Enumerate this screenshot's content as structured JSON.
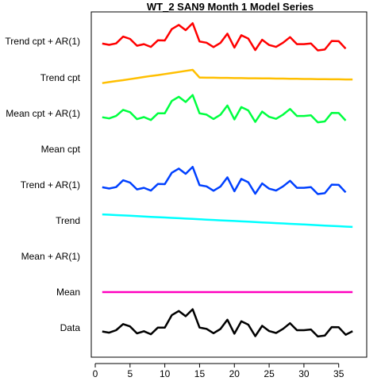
{
  "chart_data": {
    "type": "line",
    "title": "WT_2 SAN9 Month 1 Model Series",
    "xlabel": "",
    "ylabel": "",
    "xlim": [
      0,
      38
    ],
    "x_ticks": [
      0,
      5,
      10,
      15,
      20,
      25,
      30,
      35
    ],
    "grid": false,
    "legend": "none",
    "series": [
      {
        "name": "Trend cpt + AR(1)",
        "color": "#ff0000",
        "values": [
          0.15,
          0.08,
          0.16,
          0.55,
          0.42,
          0.03,
          0.12,
          -0.04,
          0.34,
          0.33,
          0.98,
          1.22,
          0.92,
          1.32,
          0.27,
          0.2,
          -0.05,
          0.19,
          0.72,
          -0.08,
          0.63,
          0.44,
          -0.22,
          0.37,
          0.07,
          -0.04,
          0.2,
          0.52,
          0.12,
          0.12,
          0.16,
          -0.24,
          -0.19,
          0.3,
          0.29,
          -0.14
        ]
      },
      {
        "name": "Trend cpt",
        "color": "#ffbf00",
        "values": [
          0.0,
          0.06,
          0.12,
          0.17,
          0.23,
          0.29,
          0.35,
          0.41,
          0.46,
          0.52,
          0.58,
          0.64,
          0.7,
          0.76,
          0.32,
          0.31,
          0.31,
          0.3,
          0.3,
          0.29,
          0.29,
          0.28,
          0.28,
          0.27,
          0.27,
          0.26,
          0.26,
          0.25,
          0.25,
          0.24,
          0.24,
          0.23,
          0.23,
          0.22,
          0.22,
          0.21,
          0.21
        ]
      },
      {
        "name": "Mean cpt + AR(1)",
        "color": "#00ff40",
        "values": [
          0.05,
          -0.02,
          0.12,
          0.47,
          0.34,
          -0.06,
          0.06,
          -0.11,
          0.27,
          0.27,
          0.98,
          1.22,
          0.92,
          1.32,
          0.27,
          0.2,
          -0.05,
          0.19,
          0.72,
          -0.08,
          0.63,
          0.44,
          -0.22,
          0.37,
          0.07,
          -0.04,
          0.2,
          0.52,
          0.12,
          0.12,
          0.16,
          -0.24,
          -0.19,
          0.3,
          0.29,
          -0.14
        ]
      },
      {
        "name": "Mean cpt",
        "color": "#00ffbf",
        "values": []
      },
      {
        "name": "Trend + AR(1)",
        "color": "#0040ff",
        "values": [
          0.15,
          0.08,
          0.16,
          0.55,
          0.42,
          0.03,
          0.12,
          -0.04,
          0.34,
          0.33,
          0.98,
          1.22,
          0.92,
          1.32,
          0.27,
          0.2,
          -0.05,
          0.19,
          0.72,
          -0.08,
          0.63,
          0.44,
          -0.22,
          0.37,
          0.07,
          -0.04,
          0.2,
          0.52,
          0.12,
          0.12,
          0.16,
          -0.24,
          -0.19,
          0.3,
          0.29,
          -0.14
        ]
      },
      {
        "name": "Trend",
        "color": "#00ffff",
        "values": [
          0.3,
          0.28,
          0.26,
          0.24,
          0.22,
          0.2,
          0.18,
          0.16,
          0.14,
          0.12,
          0.1,
          0.08,
          0.06,
          0.04,
          0.02,
          0.0,
          -0.02,
          -0.04,
          -0.06,
          -0.08,
          -0.1,
          -0.12,
          -0.14,
          -0.16,
          -0.18,
          -0.2,
          -0.22,
          -0.24,
          -0.26,
          -0.28,
          -0.3,
          -0.32,
          -0.34,
          -0.36,
          -0.38,
          -0.4,
          -0.42
        ]
      },
      {
        "name": "Mean + AR(1)",
        "color": "#8000ff",
        "values": []
      },
      {
        "name": "Mean",
        "color": "#ff00bf",
        "values": [
          0,
          0,
          0,
          0,
          0,
          0,
          0,
          0,
          0,
          0,
          0,
          0,
          0,
          0,
          0,
          0,
          0,
          0,
          0,
          0,
          0,
          0,
          0,
          0,
          0,
          0,
          0,
          0,
          0,
          0,
          0,
          0,
          0,
          0,
          0,
          0,
          0
        ]
      },
      {
        "name": "Data",
        "color": "#000000",
        "values": [
          0.05,
          -0.02,
          0.12,
          0.47,
          0.34,
          -0.06,
          0.06,
          -0.11,
          0.27,
          0.27,
          0.98,
          1.22,
          0.92,
          1.32,
          0.27,
          0.2,
          -0.05,
          0.19,
          0.72,
          -0.08,
          0.63,
          0.44,
          -0.22,
          0.37,
          0.07,
          -0.04,
          0.2,
          0.52,
          0.12,
          0.12,
          0.16,
          -0.24,
          -0.19,
          0.3,
          0.29,
          -0.14,
          0.06
        ]
      }
    ]
  }
}
